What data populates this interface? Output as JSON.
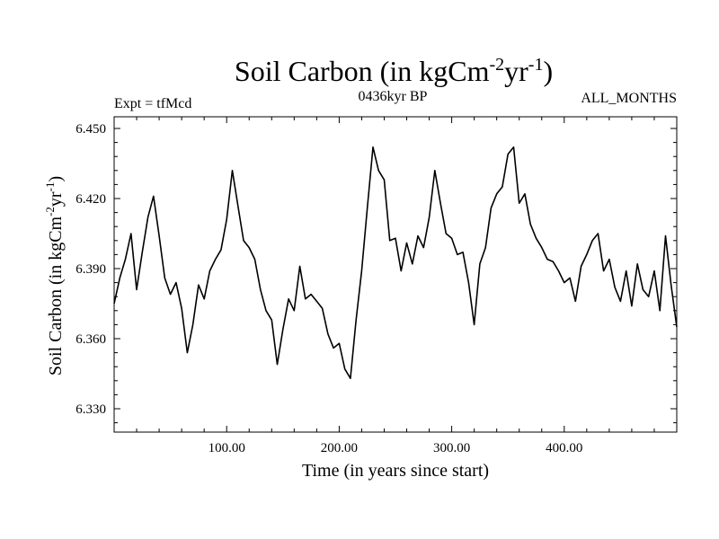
{
  "chart_data": {
    "type": "line",
    "title_main": "Soil Carbon (in kgCm",
    "title_exp1": "-2",
    "title_mid": "yr",
    "title_exp2": "-1",
    "title_end": ")",
    "subtitle_left": "Expt = tfMcd",
    "subtitle_center": "0436kyr BP",
    "subtitle_right": "ALL_MONTHS",
    "xlabel": "Time (in years since start)",
    "ylabel_main": "Soil Carbon (in kgCm",
    "ylabel_exp1": "-2",
    "ylabel_mid": "yr",
    "ylabel_exp2": "-1",
    "ylabel_end": ")",
    "xlim": [
      0,
      500
    ],
    "ylim": [
      6.32,
      6.455
    ],
    "x_ticks": [
      100,
      200,
      300,
      400
    ],
    "x_tick_labels": [
      "100.00",
      "200.00",
      "300.00",
      "400.00"
    ],
    "y_ticks": [
      6.33,
      6.36,
      6.39,
      6.42,
      6.45
    ],
    "y_tick_labels": [
      "6.330",
      "6.360",
      "6.390",
      "6.420",
      "6.450"
    ],
    "series": [
      {
        "name": "Soil Carbon",
        "x": [
          0,
          5,
          10,
          15,
          20,
          25,
          30,
          35,
          40,
          45,
          50,
          55,
          60,
          65,
          70,
          75,
          80,
          85,
          90,
          95,
          100,
          105,
          110,
          115,
          120,
          125,
          130,
          135,
          140,
          145,
          150,
          155,
          160,
          165,
          170,
          175,
          180,
          185,
          190,
          195,
          200,
          205,
          210,
          215,
          220,
          225,
          230,
          235,
          240,
          245,
          250,
          255,
          260,
          265,
          270,
          275,
          280,
          285,
          290,
          295,
          300,
          305,
          310,
          315,
          320,
          325,
          330,
          335,
          340,
          345,
          350,
          355,
          360,
          365,
          370,
          375,
          380,
          385,
          390,
          395,
          400,
          405,
          410,
          415,
          420,
          425,
          430,
          435,
          440,
          445,
          450,
          455,
          460,
          465,
          470,
          475,
          480,
          485,
          490,
          495,
          500
        ],
        "values": [
          6.375,
          6.386,
          6.394,
          6.405,
          6.381,
          6.397,
          6.412,
          6.421,
          6.404,
          6.386,
          6.379,
          6.384,
          6.373,
          6.354,
          6.366,
          6.383,
          6.377,
          6.389,
          6.394,
          6.398,
          6.411,
          6.432,
          6.417,
          6.402,
          6.399,
          6.394,
          6.381,
          6.372,
          6.368,
          6.349,
          6.364,
          6.377,
          6.372,
          6.391,
          6.377,
          6.379,
          6.376,
          6.373,
          6.362,
          6.356,
          6.358,
          6.347,
          6.343,
          6.368,
          6.389,
          6.416,
          6.442,
          6.432,
          6.428,
          6.402,
          6.403,
          6.389,
          6.401,
          6.392,
          6.404,
          6.399,
          6.412,
          6.432,
          6.418,
          6.405,
          6.403,
          6.396,
          6.397,
          6.384,
          6.366,
          6.392,
          6.399,
          6.416,
          6.422,
          6.425,
          6.439,
          6.442,
          6.418,
          6.422,
          6.409,
          6.403,
          6.399,
          6.394,
          6.393,
          6.389,
          6.384,
          6.386,
          6.376,
          6.391,
          6.396,
          6.402,
          6.405,
          6.389,
          6.394,
          6.382,
          6.376,
          6.389,
          6.374,
          6.392,
          6.381,
          6.378,
          6.389,
          6.372,
          6.404,
          6.383,
          6.365
        ]
      }
    ]
  }
}
